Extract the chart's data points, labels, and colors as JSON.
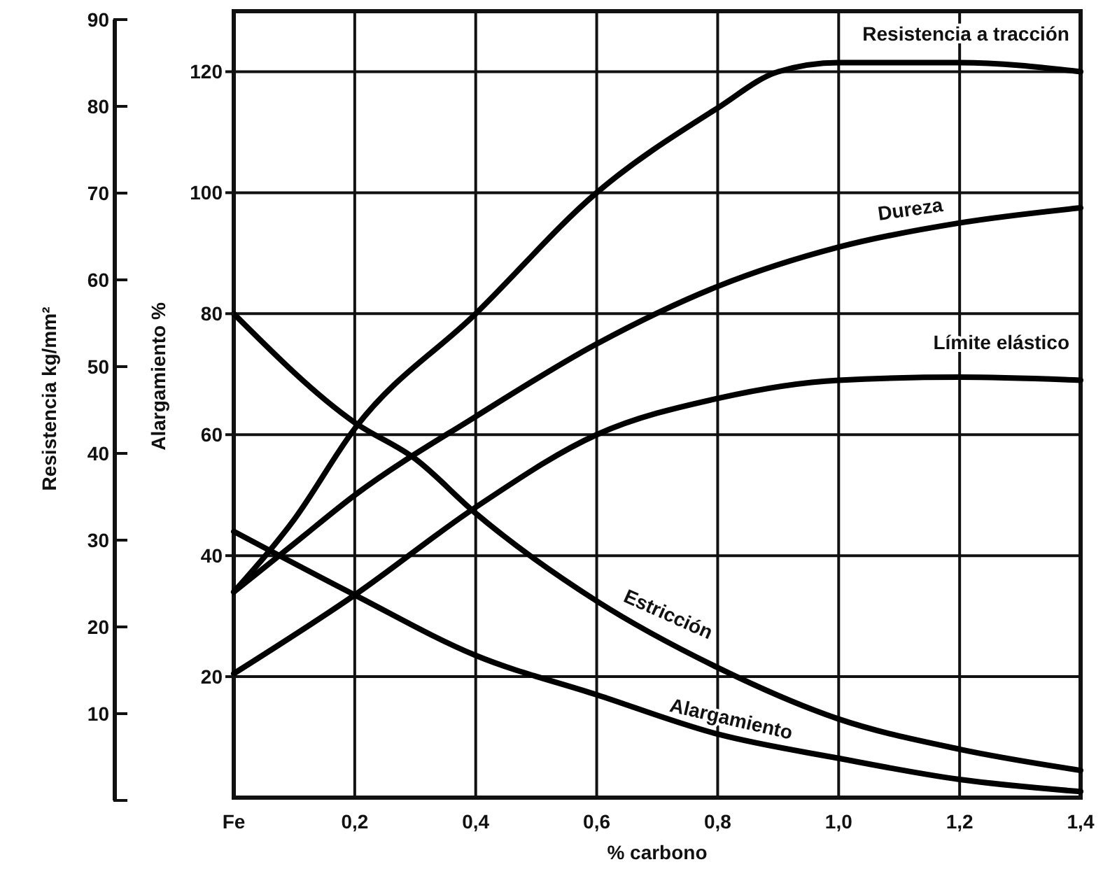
{
  "chart_data": {
    "type": "line",
    "xlabel": "% carbono",
    "ylabel": "Alargamiento %",
    "y2label": "Resistencia kg/mm²",
    "xlim": [
      0,
      1.4
    ],
    "xticks": [
      {
        "value": 0,
        "label": "Fe"
      },
      {
        "value": 0.2,
        "label": "0,2"
      },
      {
        "value": 0.4,
        "label": "0,4"
      },
      {
        "value": 0.6,
        "label": "0,6"
      },
      {
        "value": 0.8,
        "label": "0,8"
      },
      {
        "value": 1.0,
        "label": "1,0"
      },
      {
        "value": 1.2,
        "label": "1,2"
      },
      {
        "value": 1.4,
        "label": "1,4"
      }
    ],
    "ylim": [
      0,
      130
    ],
    "yticks": [
      20,
      40,
      60,
      80,
      100,
      120
    ],
    "y2lim": [
      0,
      90
    ],
    "y2ticks": [
      {
        "value": 0,
        "label": null
      },
      10,
      20,
      30,
      40,
      50,
      60,
      70,
      80,
      90
    ],
    "grid": true,
    "marker": "none",
    "line_style": "solid",
    "series": [
      {
        "name": "Resistencia a tracción",
        "color": "#000000",
        "x": [
          0,
          0.1,
          0.2,
          0.4,
          0.6,
          0.8,
          0.9,
          1.0,
          1.2,
          1.4
        ],
        "values": [
          34,
          46,
          61,
          80,
          100,
          114,
          120,
          121.5,
          121.5,
          120
        ]
      },
      {
        "name": "Dureza",
        "color": "#000000",
        "x": [
          0,
          0.1,
          0.2,
          0.4,
          0.6,
          0.8,
          1.0,
          1.2,
          1.4
        ],
        "values": [
          34,
          42,
          50,
          63,
          75,
          84.5,
          91,
          95,
          97.5
        ]
      },
      {
        "name": "Límite elástico",
        "color": "#000000",
        "x": [
          0,
          0.2,
          0.4,
          0.6,
          0.8,
          1.0,
          1.2,
          1.4
        ],
        "values": [
          20.5,
          33.5,
          48,
          60,
          66,
          69,
          69.5,
          69
        ]
      },
      {
        "name": "Estricción",
        "color": "#000000",
        "x": [
          0,
          0.2,
          0.3,
          0.4,
          0.6,
          0.8,
          1.0,
          1.2,
          1.4
        ],
        "values": [
          80,
          62,
          56,
          47,
          32.5,
          21.5,
          13,
          8,
          4.5
        ]
      },
      {
        "name": "Alargamiento",
        "color": "#000000",
        "x": [
          0,
          0.2,
          0.4,
          0.6,
          0.8,
          1.0,
          1.2,
          1.4
        ],
        "values": [
          44,
          33.5,
          23.5,
          17,
          10.5,
          6.5,
          3,
          1
        ]
      }
    ]
  }
}
